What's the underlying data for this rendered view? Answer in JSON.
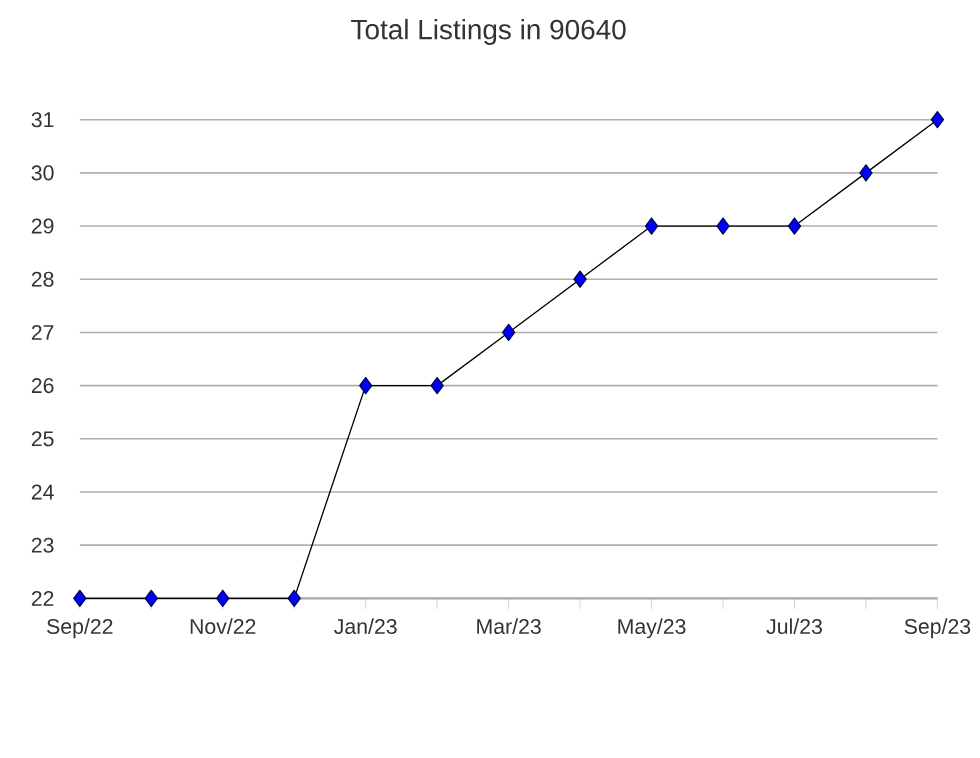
{
  "chart_data": {
    "type": "line",
    "title": "Total Listings in 90640",
    "categories": [
      "Sep/22",
      null,
      "Nov/22",
      null,
      "Jan/23",
      null,
      "Mar/23",
      null,
      "May/23",
      null,
      "Jul/23",
      null,
      "Sep/23"
    ],
    "series": [
      {
        "color": "#0000ff",
        "values": [
          22,
          22,
          22,
          22,
          26,
          26,
          27,
          28,
          29,
          29,
          29,
          30,
          31
        ]
      }
    ],
    "ylim": [
      22,
      31
    ],
    "yticks": [
      22,
      23,
      24,
      25,
      26,
      27,
      28,
      29,
      30,
      31
    ],
    "grid": "y",
    "marker": "diamond",
    "line_style": "solid"
  }
}
